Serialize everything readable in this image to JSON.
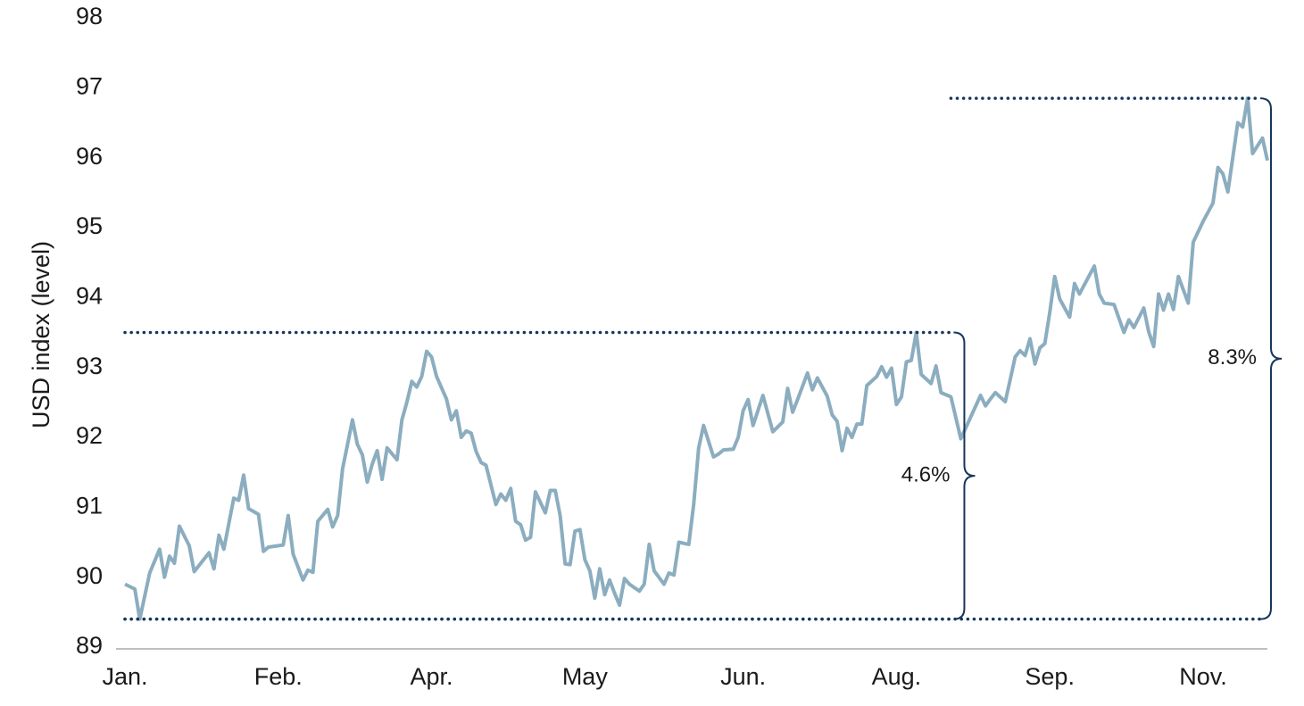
{
  "chart_data": {
    "type": "line",
    "y_label": "USD index (level)",
    "x": [
      0,
      2,
      3,
      5,
      7,
      8,
      9,
      10,
      11,
      13,
      14,
      17,
      18,
      19,
      20,
      22,
      23,
      24,
      25,
      27,
      28,
      29,
      32,
      33,
      34,
      36,
      37,
      38,
      39,
      41,
      42,
      43,
      44,
      45,
      46,
      47,
      48,
      49,
      50,
      51,
      52,
      53,
      55,
      56,
      57,
      58,
      59,
      60,
      61,
      62,
      63,
      65,
      66,
      67,
      68,
      69,
      70,
      71,
      72,
      73,
      75,
      76,
      77,
      78,
      79,
      80,
      81,
      82,
      83,
      85,
      86,
      87,
      88,
      89,
      90,
      91,
      92,
      93,
      94,
      95,
      96,
      97,
      98,
      99,
      100,
      101,
      102,
      104,
      105,
      106,
      107,
      109,
      110,
      111,
      112,
      114,
      115,
      116,
      117,
      119,
      120,
      121,
      123,
      124,
      125,
      126,
      127,
      129,
      131,
      133,
      134,
      135,
      136,
      138,
      139,
      140,
      142,
      143,
      144,
      145,
      146,
      147,
      148,
      149,
      150,
      152,
      153,
      154,
      155,
      156,
      157,
      158,
      159,
      160,
      161,
      163,
      164,
      165,
      167,
      169,
      173,
      174,
      175,
      176,
      178,
      179,
      180,
      181,
      182,
      183,
      184,
      185,
      186,
      187,
      188,
      189,
      191,
      192,
      193,
      196,
      197,
      198,
      200,
      202,
      203,
      204,
      206,
      207,
      208,
      209,
      210,
      211,
      212,
      213,
      215,
      216,
      218,
      220,
      221,
      222,
      223,
      224,
      225,
      226,
      227,
      228,
      230,
      231
    ],
    "series": [
      {
        "color": "#8badbf",
        "values": [
          89.9,
          89.83,
          89.4,
          90.06,
          90.4,
          90.0,
          90.3,
          90.2,
          90.73,
          90.45,
          90.08,
          90.35,
          90.12,
          90.6,
          90.4,
          91.13,
          91.1,
          91.46,
          90.98,
          90.9,
          90.37,
          90.43,
          90.46,
          90.88,
          90.33,
          89.96,
          90.1,
          90.07,
          90.8,
          90.97,
          90.72,
          90.88,
          91.55,
          91.9,
          92.25,
          91.9,
          91.75,
          91.36,
          91.62,
          91.81,
          91.4,
          91.85,
          91.68,
          92.25,
          92.5,
          92.8,
          92.72,
          92.87,
          93.23,
          93.15,
          92.87,
          92.55,
          92.25,
          92.38,
          92.0,
          92.09,
          92.06,
          91.8,
          91.64,
          91.6,
          91.04,
          91.19,
          91.1,
          91.27,
          90.8,
          90.75,
          90.53,
          90.57,
          91.22,
          90.92,
          91.24,
          91.24,
          90.88,
          90.19,
          90.18,
          90.66,
          90.68,
          90.25,
          90.09,
          89.7,
          90.12,
          89.75,
          89.96,
          89.77,
          89.6,
          89.98,
          89.9,
          89.8,
          89.9,
          90.47,
          90.09,
          89.9,
          90.06,
          90.03,
          90.5,
          90.47,
          91.04,
          91.85,
          92.17,
          91.72,
          91.76,
          91.82,
          91.83,
          92.0,
          92.38,
          92.54,
          92.17,
          92.6,
          92.08,
          92.22,
          92.7,
          92.36,
          92.54,
          92.92,
          92.68,
          92.85,
          92.59,
          92.32,
          92.23,
          91.81,
          92.13,
          92.0,
          92.19,
          92.19,
          92.74,
          92.87,
          93.01,
          92.86,
          92.99,
          92.47,
          92.58,
          93.08,
          93.1,
          93.5,
          92.9,
          92.77,
          93.02,
          92.64,
          92.58,
          91.98,
          92.6,
          92.45,
          92.55,
          92.64,
          92.51,
          92.83,
          93.15,
          93.24,
          93.17,
          93.41,
          93.05,
          93.28,
          93.34,
          93.79,
          94.3,
          93.98,
          93.72,
          94.2,
          94.05,
          94.45,
          94.05,
          93.92,
          93.9,
          93.5,
          93.68,
          93.57,
          93.85,
          93.51,
          93.3,
          94.05,
          93.82,
          94.05,
          93.83,
          94.3,
          93.92,
          94.79,
          95.09,
          95.35,
          95.86,
          95.77,
          95.51,
          96.0,
          96.5,
          96.44,
          96.85,
          96.06,
          96.28,
          95.96
        ]
      }
    ],
    "xlim": [
      0,
      231
    ],
    "xticks": [
      {
        "value": 0,
        "label": "Jan."
      },
      {
        "value": 31,
        "label": "Feb."
      },
      {
        "value": 62,
        "label": "Apr."
      },
      {
        "value": 93,
        "label": "May"
      },
      {
        "value": 125,
        "label": "Jun."
      },
      {
        "value": 156,
        "label": "Aug."
      },
      {
        "value": 187,
        "label": "Sep."
      },
      {
        "value": 218,
        "label": "Nov."
      }
    ],
    "ylim": [
      89,
      98
    ],
    "yticks": [
      89,
      90,
      91,
      92,
      93,
      94,
      95,
      96,
      97,
      98
    ],
    "grid": false,
    "annotation_color": "#17365d",
    "annotations": [
      {
        "label": "4.6%",
        "low": 89.4,
        "high": 93.5,
        "x": 169,
        "line_from": 0
      },
      {
        "label": "8.3%",
        "low": 89.4,
        "high": 96.85,
        "x": 231,
        "line_from": 167
      }
    ]
  }
}
